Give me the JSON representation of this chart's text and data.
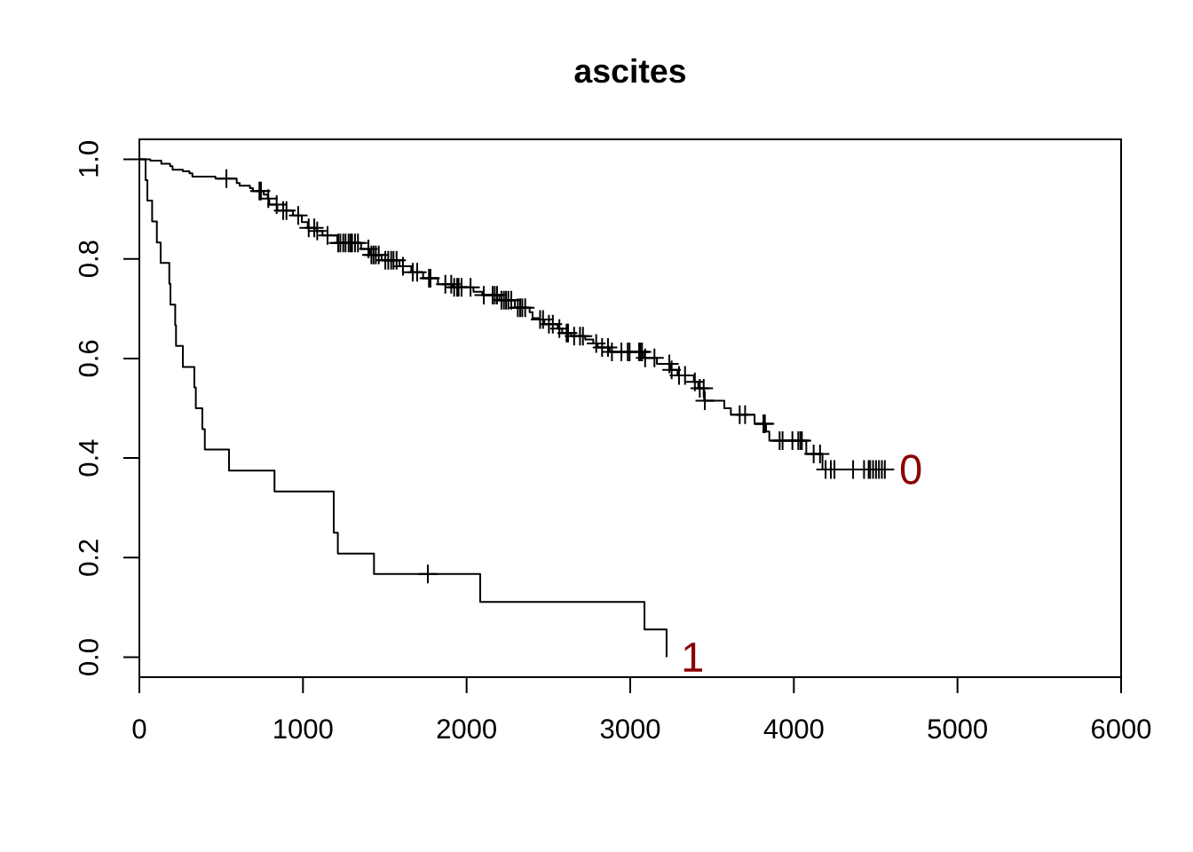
{
  "chart_data": {
    "type": "step",
    "title": "ascites",
    "xlim": [
      0,
      6000
    ],
    "xticks": [
      0,
      1000,
      2000,
      3000,
      4000,
      5000,
      6000
    ],
    "ylim": [
      -0.04,
      1.04
    ],
    "yticks": [
      {
        "value": 0,
        "label": "0.0"
      },
      {
        "value": 0.2,
        "label": "0.2"
      },
      {
        "value": 0.4,
        "label": "0.4"
      },
      {
        "value": 0.6,
        "label": "0.6"
      },
      {
        "value": 0.8,
        "label": "0.8"
      },
      {
        "value": 1,
        "label": "1.0"
      }
    ],
    "annotations": [
      {
        "text": "0",
        "x": 4556,
        "y": 0.377
      },
      {
        "text": "1",
        "x": 3222,
        "y": 0
      }
    ],
    "series": [
      {
        "color": "#000000",
        "x": [
          0,
          67,
          134,
          188,
          203,
          266,
          306,
          324,
          465,
          595,
          613,
          676,
          694,
          760,
          785,
          794,
          843,
          939,
          993,
          1029,
          1083,
          1119,
          1210,
          1355,
          1409,
          1481,
          1590,
          1662,
          1734,
          1825,
          1915,
          2042,
          2096,
          2200,
          2295,
          2385,
          2403,
          2440,
          2475,
          2557,
          2584,
          2638,
          2725,
          2774,
          2801,
          2874,
          3080,
          3163,
          3244,
          3289,
          3389,
          3416,
          3452,
          3575,
          3615,
          3760,
          3830,
          3850,
          4076,
          4175,
          4556
        ],
        "values": [
          1,
          0.997,
          0.991,
          0.986,
          0.979,
          0.976,
          0.972,
          0.965,
          0.961,
          0.952,
          0.947,
          0.942,
          0.936,
          0.929,
          0.921,
          0.909,
          0.897,
          0.887,
          0.874,
          0.862,
          0.856,
          0.847,
          0.832,
          0.82,
          0.808,
          0.797,
          0.785,
          0.773,
          0.761,
          0.749,
          0.743,
          0.734,
          0.727,
          0.717,
          0.702,
          0.693,
          0.681,
          0.678,
          0.669,
          0.66,
          0.651,
          0.645,
          0.638,
          0.63,
          0.622,
          0.613,
          0.601,
          0.589,
          0.577,
          0.566,
          0.553,
          0.54,
          0.515,
          0.5,
          0.487,
          0.469,
          0.453,
          0.435,
          0.408,
          0.377,
          0.377
        ]
      },
      {
        "color": "#000000",
        "x": [
          0,
          38,
          49,
          78,
          107,
          130,
          183,
          190,
          219,
          224,
          266,
          336,
          345,
          385,
          400,
          548,
          826,
          1188,
          1213,
          1434,
          2083,
          3087,
          3222
        ],
        "values": [
          1,
          0.958,
          0.917,
          0.875,
          0.833,
          0.792,
          0.75,
          0.708,
          0.667,
          0.625,
          0.583,
          0.542,
          0.5,
          0.458,
          0.417,
          0.375,
          0.333,
          0.25,
          0.208,
          0.167,
          0.111,
          0.056,
          0
        ]
      },
      {
        "type": "scatter",
        "marker": "cross",
        "color": "#000000",
        "x": [
          532,
          734,
          743,
          788,
          839,
          879,
          899,
          971,
          1035,
          1069,
          1087,
          1150,
          1215,
          1228,
          1246,
          1260,
          1279,
          1291,
          1300,
          1318,
          1336,
          1400,
          1418,
          1431,
          1445,
          1463,
          1503,
          1521,
          1539,
          1553,
          1572,
          1611,
          1671,
          1698,
          1770,
          1779,
          1870,
          1906,
          1924,
          1942,
          1951,
          1969,
          2024,
          2105,
          2159,
          2172,
          2186,
          2213,
          2228,
          2241,
          2255,
          2273,
          2313,
          2327,
          2340,
          2358,
          2449,
          2467,
          2503,
          2527,
          2567,
          2611,
          2620,
          2657,
          2693,
          2711,
          2792,
          2828,
          2864,
          2888,
          2946,
          2985,
          2996,
          3054,
          3063,
          3072,
          3091,
          3148,
          3239,
          3253,
          3298,
          3335,
          3395,
          3425,
          3449,
          3456,
          3669,
          3702,
          3814,
          3823,
          3913,
          3931,
          3991,
          4027,
          4040,
          4049,
          4121,
          4160,
          4194,
          4226,
          4248,
          4362,
          4429,
          4457,
          4466,
          4484,
          4502,
          4520,
          4538,
          4556
        ],
        "values": [
          0.961,
          0.936,
          0.936,
          0.921,
          0.909,
          0.897,
          0.897,
          0.887,
          0.862,
          0.862,
          0.856,
          0.847,
          0.832,
          0.832,
          0.832,
          0.832,
          0.832,
          0.832,
          0.832,
          0.832,
          0.832,
          0.82,
          0.808,
          0.808,
          0.808,
          0.808,
          0.797,
          0.797,
          0.797,
          0.797,
          0.797,
          0.785,
          0.773,
          0.773,
          0.761,
          0.761,
          0.749,
          0.749,
          0.743,
          0.743,
          0.743,
          0.743,
          0.743,
          0.727,
          0.727,
          0.727,
          0.727,
          0.717,
          0.717,
          0.717,
          0.717,
          0.717,
          0.702,
          0.702,
          0.702,
          0.702,
          0.678,
          0.678,
          0.669,
          0.669,
          0.66,
          0.651,
          0.651,
          0.645,
          0.645,
          0.645,
          0.63,
          0.622,
          0.622,
          0.613,
          0.613,
          0.613,
          0.613,
          0.613,
          0.613,
          0.613,
          0.601,
          0.601,
          0.589,
          0.577,
          0.566,
          0.566,
          0.553,
          0.54,
          0.54,
          0.515,
          0.487,
          0.487,
          0.469,
          0.469,
          0.435,
          0.435,
          0.435,
          0.435,
          0.435,
          0.435,
          0.408,
          0.408,
          0.377,
          0.377,
          0.377,
          0.377,
          0.377,
          0.377,
          0.377,
          0.377,
          0.377,
          0.377,
          0.377,
          0.377
        ]
      },
      {
        "type": "scatter",
        "marker": "cross",
        "color": "#000000",
        "x": [
          1763
        ],
        "values": [
          0.167
        ]
      }
    ]
  }
}
